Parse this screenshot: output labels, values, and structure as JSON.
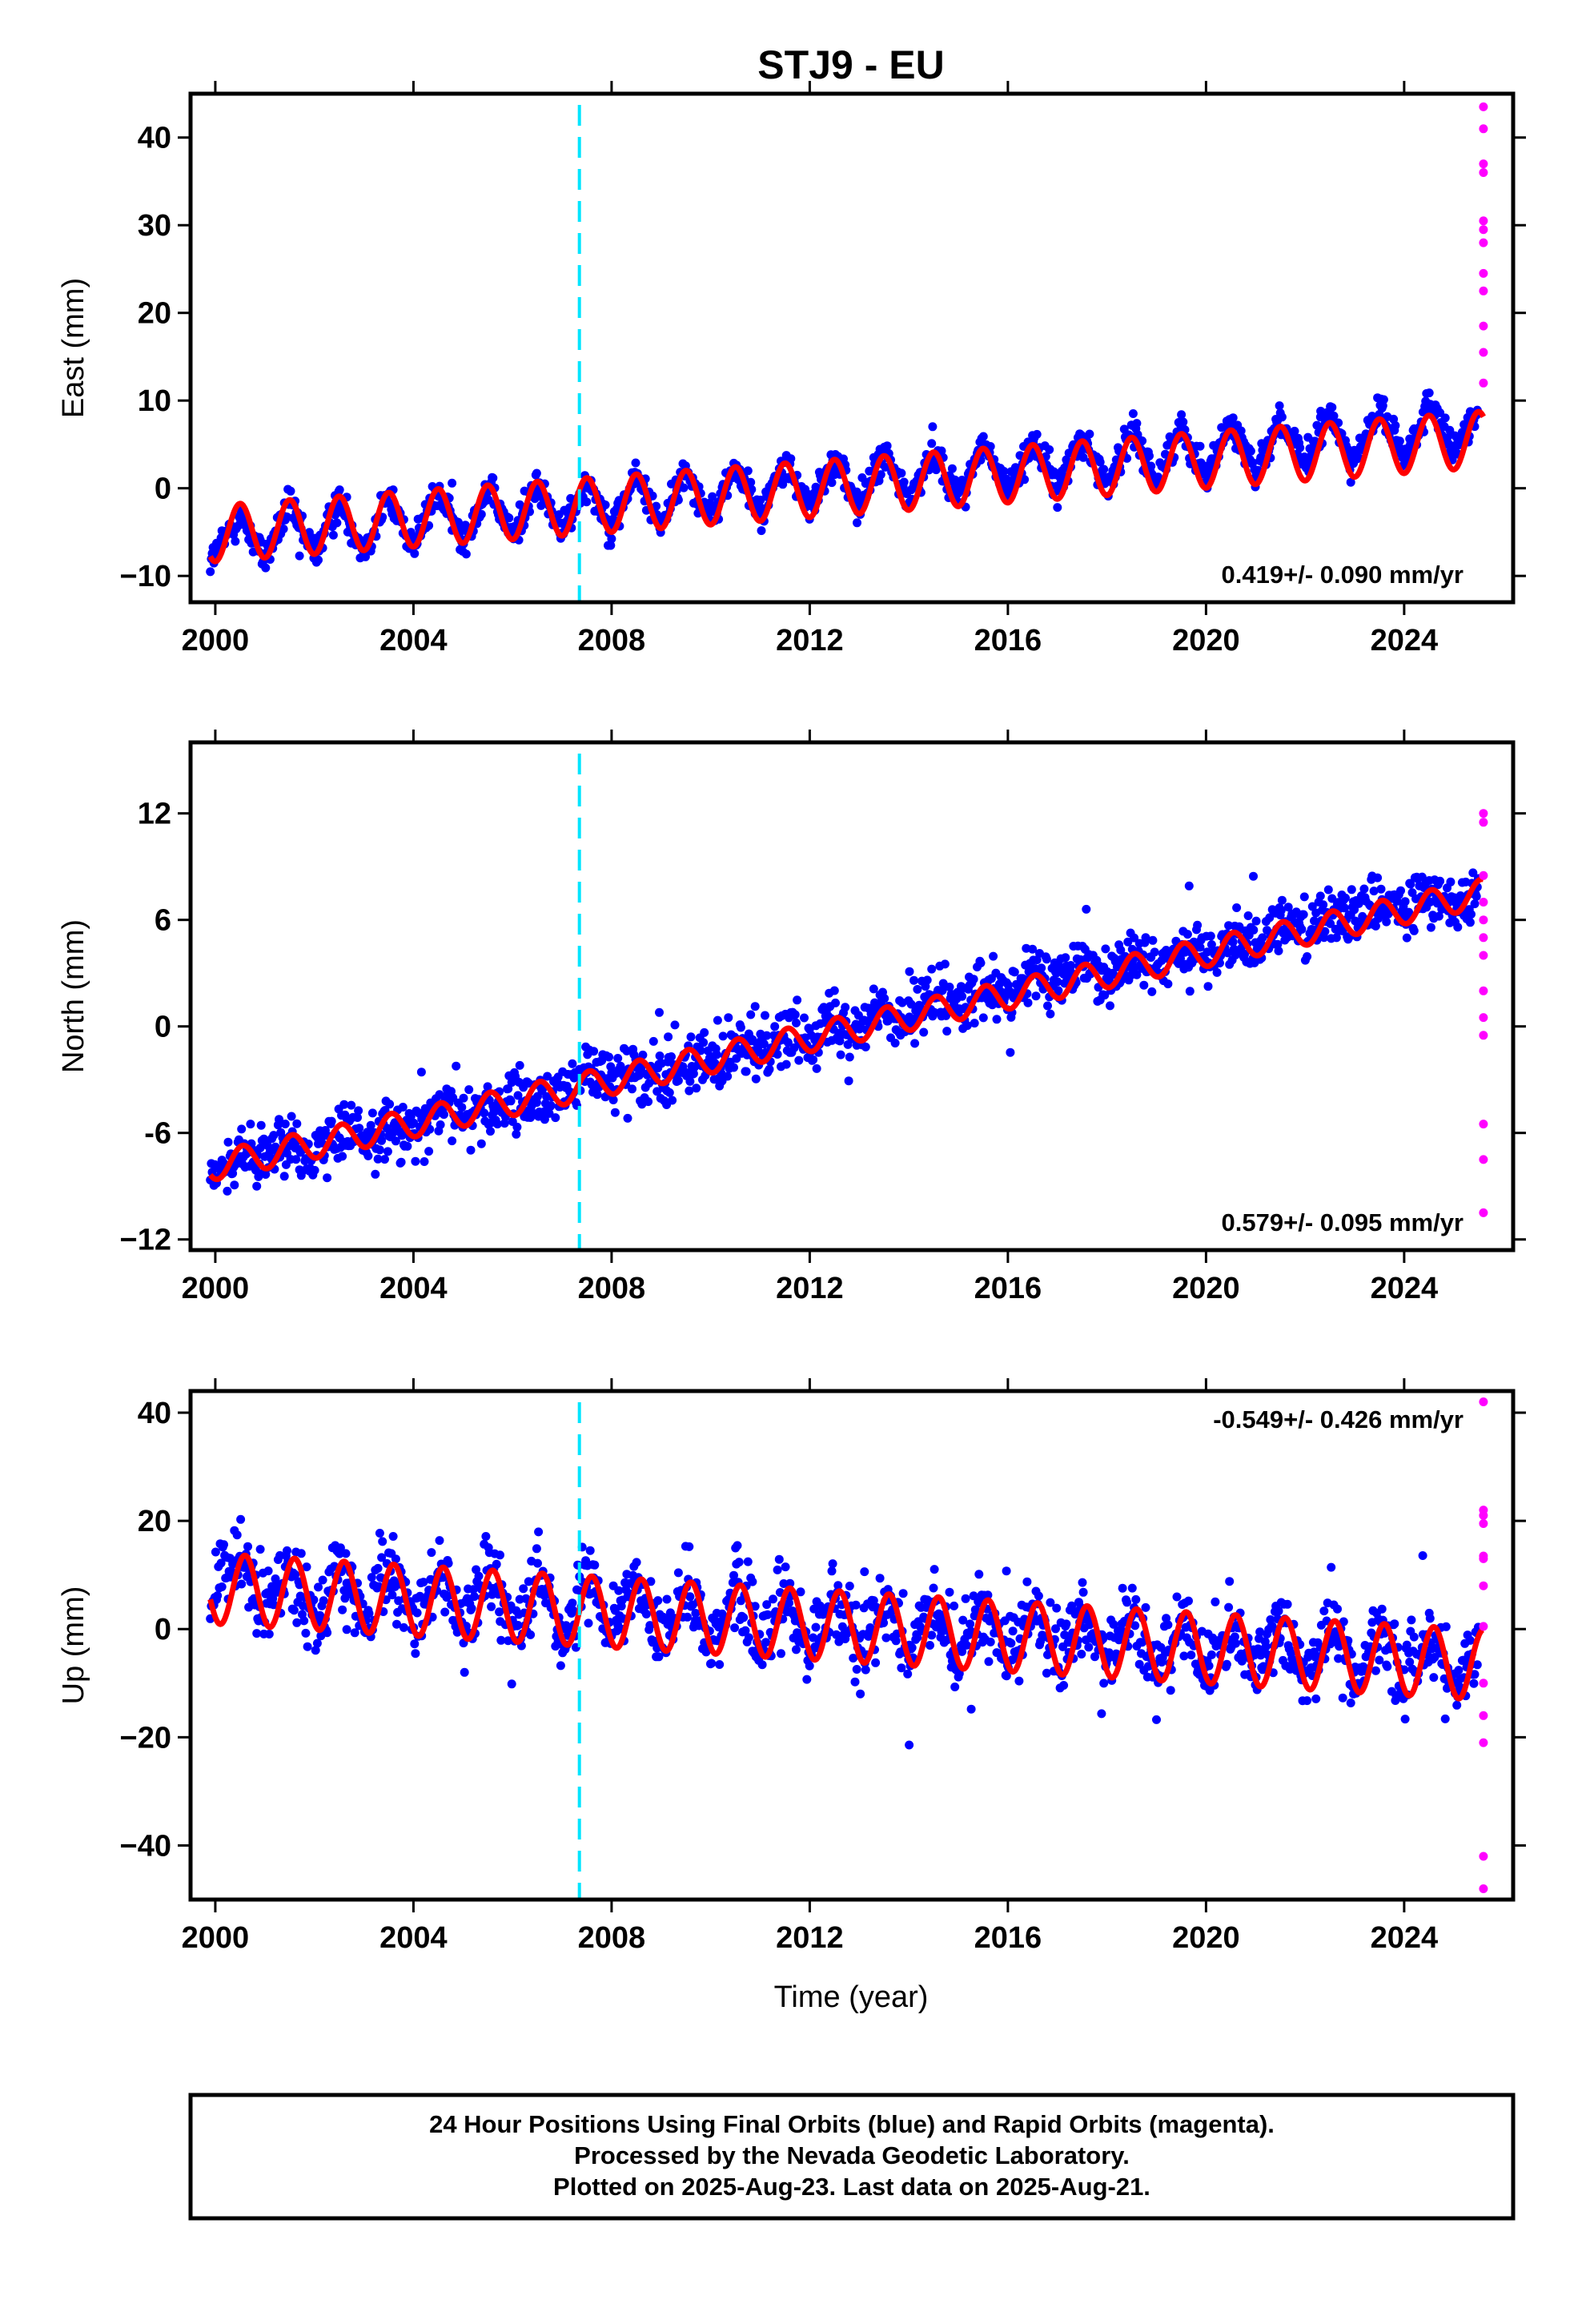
{
  "title": "STJ9 - EU",
  "colors": {
    "final_orbits": "#0000ff",
    "rapid_orbits": "#ff00ff",
    "model_fit": "#ff0000",
    "event_line": "#00e5ff",
    "frame": "#000000"
  },
  "chart_data": [
    {
      "type": "scatter",
      "ylabel": "East (mm)",
      "xlabel": "",
      "xlim": [
        1999.5,
        2026.2
      ],
      "ylim": [
        -13,
        45
      ],
      "xticks": [
        2000,
        2004,
        2008,
        2012,
        2016,
        2020,
        2024
      ],
      "yticks": [
        -10,
        0,
        10,
        20,
        30,
        40
      ],
      "ytick_labels": [
        "−10",
        "0",
        "10",
        "20",
        "30",
        "40"
      ],
      "rate_label": "0.419+/- 0.090 mm/yr",
      "rate_position": "bottom-right",
      "event_line_x": 2007.35,
      "series": [
        {
          "name": "Final Orbits",
          "color": "#0000ff",
          "x": [
            1999.9,
            2000.5,
            2001.0,
            2001.5,
            2002.0,
            2002.5,
            2003.0,
            2003.5,
            2004.0,
            2004.5,
            2005.0,
            2005.5,
            2006.0,
            2006.5,
            2007.0,
            2007.5,
            2008.0,
            2008.5,
            2009.0,
            2009.5,
            2010.0,
            2010.5,
            2011.0,
            2011.5,
            2012.0,
            2012.5,
            2013.0,
            2013.5,
            2014.0,
            2014.5,
            2015.0,
            2015.5,
            2016.0,
            2016.5,
            2017.0,
            2017.5,
            2018.0,
            2018.5,
            2019.0,
            2019.5,
            2020.0,
            2020.5,
            2021.0,
            2021.5,
            2022.0,
            2022.5,
            2023.0,
            2023.5,
            2024.0,
            2024.5,
            2025.0,
            2025.5
          ],
          "y": [
            -8.5,
            -3.0,
            -8.0,
            -2.0,
            -7.5,
            -1.5,
            -7.0,
            -1.0,
            -6.5,
            -0.5,
            -6.0,
            0.0,
            -5.5,
            0.5,
            -5.0,
            1.0,
            -4.5,
            1.5,
            -4.0,
            2.0,
            -3.5,
            2.5,
            -3.0,
            3.0,
            -2.5,
            3.5,
            -2.0,
            4.0,
            -1.5,
            4.5,
            -1.0,
            5.0,
            -0.5,
            5.5,
            0.0,
            6.0,
            0.5,
            6.5,
            1.0,
            7.0,
            1.5,
            7.5,
            2.0,
            8.0,
            2.5,
            8.5,
            3.0,
            9.0,
            3.5,
            9.5,
            4.0,
            9.0
          ],
          "spread": 1.6
        },
        {
          "name": "Rapid Orbits",
          "color": "#ff00ff",
          "x": [
            2025.6,
            2025.6,
            2025.6,
            2025.6,
            2025.6,
            2025.6,
            2025.6,
            2025.6,
            2025.6,
            2025.6,
            2025.6,
            2025.6
          ],
          "y": [
            43.5,
            41.0,
            37.0,
            36.0,
            30.5,
            29.5,
            28.0,
            24.5,
            22.5,
            18.5,
            15.5,
            12.0
          ]
        },
        {
          "name": "Model Fit",
          "color": "#ff0000",
          "x0": 1999.9,
          "x1": 2025.6,
          "offset_at_x0": -5.2,
          "rate_per_year": 0.419,
          "amplitude": 3.2,
          "phase_year": 2000.25
        }
      ]
    },
    {
      "type": "scatter",
      "ylabel": "North (mm)",
      "xlabel": "",
      "xlim": [
        1999.5,
        2026.2
      ],
      "ylim": [
        -12.6,
        16
      ],
      "xticks": [
        2000,
        2004,
        2008,
        2012,
        2016,
        2020,
        2024
      ],
      "yticks": [
        -12,
        -6,
        0,
        6,
        12
      ],
      "ytick_labels": [
        "−12",
        "-6",
        "0",
        "6",
        "12"
      ],
      "rate_label": "0.579+/- 0.095 mm/yr",
      "rate_position": "bottom-right",
      "event_line_x": 2007.35,
      "series": [
        {
          "name": "Final Orbits",
          "color": "#0000ff",
          "x": [
            1999.9,
            2000.5,
            2001.0,
            2001.5,
            2002.0,
            2002.5,
            2003.0,
            2003.5,
            2004.0,
            2004.5,
            2005.0,
            2005.5,
            2006.0,
            2006.5,
            2007.0,
            2007.5,
            2008.0,
            2008.5,
            2009.0,
            2009.5,
            2010.0,
            2010.5,
            2011.0,
            2011.5,
            2012.0,
            2012.5,
            2013.0,
            2013.5,
            2014.0,
            2014.5,
            2015.0,
            2015.5,
            2016.0,
            2016.5,
            2017.0,
            2017.5,
            2018.0,
            2018.5,
            2019.0,
            2019.5,
            2020.0,
            2020.5,
            2021.0,
            2021.5,
            2022.0,
            2022.5,
            2023.0,
            2023.5,
            2024.0,
            2024.5,
            2025.0,
            2025.5
          ],
          "y": [
            -8.0,
            -7.5,
            -7.5,
            -6.5,
            -7.0,
            -6.0,
            -6.5,
            -5.5,
            -6.0,
            -5.0,
            -5.0,
            -4.5,
            -4.5,
            -4.0,
            -4.0,
            -2.5,
            -3.0,
            -2.5,
            -2.5,
            -2.0,
            -2.0,
            -1.5,
            -1.0,
            -0.5,
            -0.5,
            0.5,
            0.0,
            1.0,
            0.5,
            1.5,
            1.0,
            2.0,
            1.5,
            3.0,
            2.5,
            3.5,
            3.0,
            4.0,
            3.5,
            4.5,
            4.0,
            5.0,
            4.5,
            6.0,
            5.5,
            6.5,
            6.0,
            7.0,
            6.5,
            7.5,
            7.0,
            7.5
          ],
          "spread": 1.4
        },
        {
          "name": "Rapid Orbits",
          "color": "#ff00ff",
          "x": [
            2025.6,
            2025.6,
            2025.6,
            2025.6,
            2025.6,
            2025.6,
            2025.6,
            2025.6,
            2025.6,
            2025.6,
            2025.6,
            2025.6,
            2025.6
          ],
          "y": [
            12.0,
            11.5,
            8.5,
            7.0,
            6.0,
            5.0,
            4.0,
            2.0,
            0.5,
            -0.5,
            -5.5,
            -7.5,
            -10.5
          ]
        },
        {
          "name": "Model Fit",
          "color": "#ff0000",
          "x0": 1999.9,
          "x1": 2025.6,
          "offset_at_x0": -7.9,
          "rate_per_year": 0.6,
          "amplitude": 0.8,
          "phase_year": 2000.3
        }
      ]
    },
    {
      "type": "scatter",
      "ylabel": "Up (mm)",
      "xlabel": "Time (year)",
      "xlim": [
        1999.5,
        2026.2
      ],
      "ylim": [
        -50,
        44
      ],
      "xticks": [
        2000,
        2004,
        2008,
        2012,
        2016,
        2020,
        2024
      ],
      "yticks": [
        -40,
        -20,
        0,
        20,
        40
      ],
      "ytick_labels": [
        "−40",
        "−20",
        "0",
        "20",
        "40"
      ],
      "rate_label": "-0.549+/- 0.426 mm/yr",
      "rate_position": "top-right",
      "event_line_x": 2007.35,
      "series": [
        {
          "name": "Final Orbits",
          "color": "#0000ff",
          "x": [
            1999.9,
            2000.5,
            2001.0,
            2001.5,
            2002.0,
            2002.5,
            2003.0,
            2003.5,
            2004.0,
            2004.5,
            2005.0,
            2005.5,
            2006.0,
            2006.5,
            2007.0,
            2007.5,
            2008.0,
            2008.5,
            2009.0,
            2009.5,
            2010.0,
            2010.5,
            2011.0,
            2011.5,
            2012.0,
            2012.5,
            2013.0,
            2013.5,
            2014.0,
            2014.5,
            2015.0,
            2015.5,
            2016.0,
            2016.5,
            2017.0,
            2017.5,
            2018.0,
            2018.5,
            2019.0,
            2019.5,
            2020.0,
            2020.5,
            2021.0,
            2021.5,
            2022.0,
            2022.5,
            2023.0,
            2023.5,
            2024.0,
            2024.5,
            2025.0,
            2025.5
          ],
          "y": [
            6.0,
            14.0,
            2.0,
            13.0,
            1.5,
            12.5,
            1.0,
            12.0,
            0.5,
            11.5,
            0.0,
            11.0,
            -0.5,
            10.5,
            -1.0,
            9.0,
            -1.5,
            8.5,
            -2.0,
            8.0,
            -2.5,
            7.5,
            -3.0,
            7.0,
            -3.5,
            6.0,
            -4.0,
            5.5,
            -4.5,
            5.0,
            -5.0,
            4.5,
            -6.0,
            4.0,
            -6.5,
            3.5,
            -7.0,
            3.0,
            -7.5,
            2.5,
            -8.0,
            2.0,
            -8.5,
            1.5,
            -9.0,
            1.0,
            -9.5,
            0.5,
            -10.0,
            0.0,
            -11.0,
            -2.0
          ],
          "spread": 6.0
        },
        {
          "name": "Rapid Orbits",
          "color": "#ff00ff",
          "x": [
            2025.6,
            2025.6,
            2025.6,
            2025.6,
            2025.6,
            2025.6,
            2025.6,
            2025.6,
            2025.6,
            2025.6,
            2025.6,
            2025.6,
            2025.6
          ],
          "y": [
            42.0,
            22.0,
            21.0,
            19.5,
            13.5,
            13.0,
            8.0,
            0.5,
            -10.0,
            -16.0,
            -21.0,
            -42.0,
            -48.0
          ]
        },
        {
          "name": "Model Fit",
          "color": "#ff0000",
          "x0": 1999.9,
          "x1": 2025.6,
          "offset_at_x0": 7.5,
          "rate_per_year": -0.55,
          "amplitude": 6.5,
          "phase_year": 2000.35
        }
      ]
    }
  ],
  "caption": {
    "line1": "24 Hour Positions Using Final Orbits (blue) and Rapid Orbits (magenta).",
    "line2": "Processed by the Nevada Geodetic Laboratory.",
    "line3": "Plotted on 2025-Aug-23. Last data on 2025-Aug-21."
  }
}
